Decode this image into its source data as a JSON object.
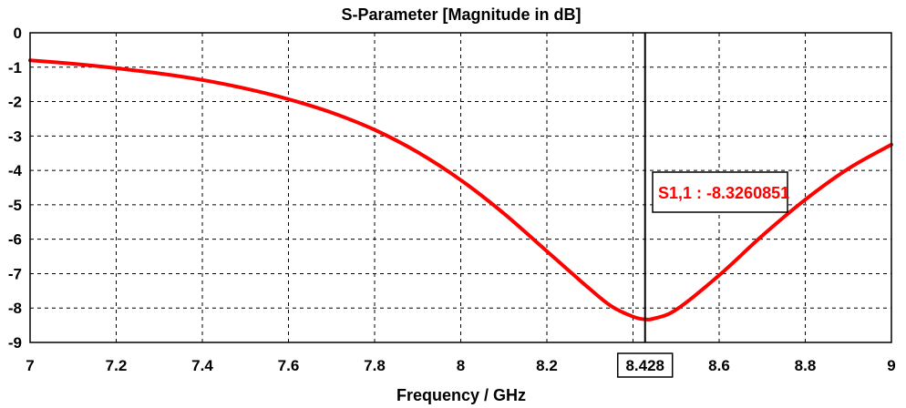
{
  "chart_data": {
    "type": "line",
    "title": "S-Parameter [Magnitude in dB]",
    "xlabel": "Frequency / GHz",
    "ylabel": "",
    "xlim": [
      7,
      9
    ],
    "ylim": [
      -9,
      0
    ],
    "grid": true,
    "x_ticks": [
      7,
      7.2,
      7.4,
      7.6,
      7.8,
      8,
      8.2,
      8.4,
      8.6,
      8.8,
      9
    ],
    "x_tick_labels": [
      "7",
      "7.2",
      "7.4",
      "7.6",
      "7.8",
      "8",
      "8.2",
      "",
      "8.6",
      "8.8",
      "9"
    ],
    "y_ticks": [
      0,
      -1,
      -2,
      -3,
      -4,
      -5,
      -6,
      -7,
      -8,
      -9
    ],
    "y_tick_labels": [
      "0",
      "-1",
      "-2",
      "-3",
      "-4",
      "-5",
      "-6",
      "-7",
      "-8",
      "-9"
    ],
    "series": [
      {
        "name": "S1,1",
        "color": "#ff0000",
        "x": [
          7.0,
          7.1,
          7.2,
          7.3,
          7.4,
          7.5,
          7.6,
          7.7,
          7.8,
          7.9,
          8.0,
          8.1,
          8.2,
          8.3,
          8.35,
          8.4,
          8.428,
          8.45,
          8.5,
          8.6,
          8.7,
          8.8,
          8.9,
          9.0
        ],
        "y": [
          -0.8,
          -0.9,
          -1.03,
          -1.18,
          -1.37,
          -1.62,
          -1.93,
          -2.32,
          -2.82,
          -3.47,
          -4.28,
          -5.25,
          -6.35,
          -7.45,
          -7.95,
          -8.25,
          -8.33,
          -8.3,
          -8.05,
          -7.05,
          -5.9,
          -4.85,
          -3.95,
          -3.25
        ]
      }
    ],
    "marker": {
      "x": 8.428,
      "x_label": "8.428",
      "label": "S1,1 : -8.3260851",
      "value": -8.3260851
    }
  }
}
